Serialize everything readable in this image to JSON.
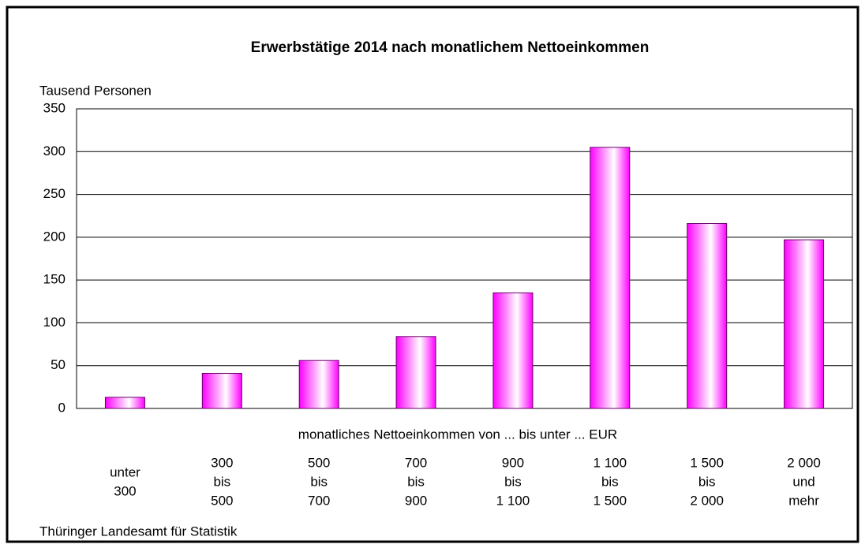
{
  "chart_data": {
    "type": "bar",
    "title": "Erwerbstätige 2014 nach monatlichem Nettoeinkommen",
    "y_label": "Tausend Personen",
    "x_label": "monatliches Nettoeinkommen von ... bis unter ... EUR",
    "source": "Thüringer Landesamt für Statistik",
    "categories": [
      [
        "unter",
        "300"
      ],
      [
        "300",
        "bis",
        "500"
      ],
      [
        "500",
        "bis",
        "700"
      ],
      [
        "700",
        "bis",
        "900"
      ],
      [
        "900",
        "bis",
        "1 100"
      ],
      [
        "1 100",
        "bis",
        "1 500"
      ],
      [
        "1 500",
        "bis",
        "2 000"
      ],
      [
        "2 000",
        "und",
        "mehr"
      ]
    ],
    "values": [
      13,
      41,
      56,
      84,
      135,
      305,
      216,
      197
    ],
    "color": "#ff00ff",
    "ylim": [
      0,
      350
    ],
    "yticks": [
      0,
      50,
      100,
      150,
      200,
      250,
      300,
      350
    ],
    "grid": true
  }
}
